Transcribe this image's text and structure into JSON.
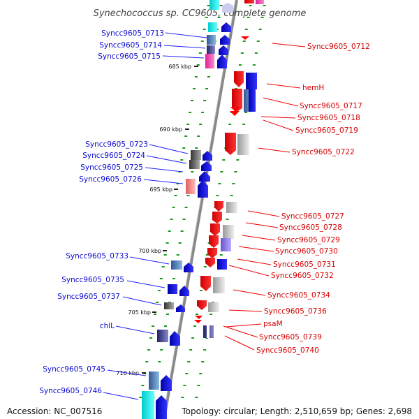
{
  "title": "Synechococcus sp. CC9605, complete genome",
  "footer": {
    "accession": "Accession: NC_007516",
    "topology": "Topology: circular; Length: 2,510,659 bp; Genes: 2,698"
  },
  "scale_labels": [
    "685 kbp",
    "690 kbp",
    "695 kbp",
    "700 kbp",
    "705 kbp",
    "710 kbp"
  ],
  "left_genes": [
    "Syncc9605_0713",
    "Syncc9605_0714",
    "Syncc9605_0715",
    "Syncc9605_0723",
    "Syncc9605_0724",
    "Syncc9605_0725",
    "Syncc9605_0726",
    "Syncc9605_0733",
    "Syncc9605_0735",
    "Syncc9605_0737",
    "chlL",
    "Syncc9605_0745",
    "Syncc9605_0746"
  ],
  "right_genes": [
    "Syncc9605_0712",
    "hemH",
    "Syncc9605_0717",
    "Syncc9605_0718",
    "Syncc9605_0719",
    "Syncc9605_0722",
    "Syncc9605_0727",
    "Syncc9605_0728",
    "Syncc9605_0729",
    "Syncc9605_0730",
    "Syncc9605_0731",
    "Syncc9605_0732",
    "Syncc9605_0734",
    "Syncc9605_0736",
    "psaM",
    "Syncc9605_0739",
    "Syncc9605_0740"
  ],
  "colors": {
    "forward_strand": "#0000ff",
    "reverse_strand": "#ff0000",
    "backbone": "#777777",
    "label_left": "#0a0ad0",
    "label_right": "#d40000"
  }
}
